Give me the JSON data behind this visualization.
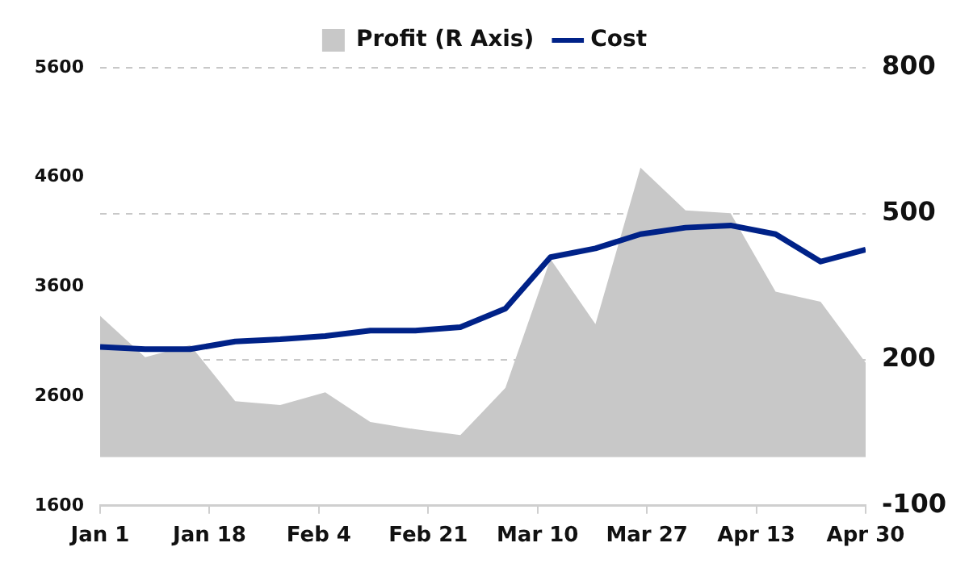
{
  "chart_data": {
    "type": "line",
    "x": [
      "--01-01",
      "--01-08",
      "--01-15",
      "--01-22",
      "--01-29",
      "--02-05",
      "--02-12",
      "--02-19",
      "--02-26",
      "--03-05",
      "--03-12",
      "--03-19",
      "--03-26",
      "--04-02",
      "--04-09",
      "--04-16",
      "--04-23",
      "--04-30"
    ],
    "series": [
      {
        "name": "Profit (R Axis)",
        "type": "area",
        "axis": "y2",
        "color": "#c8c8c8",
        "values": [
          290,
          205,
          230,
          115,
          107,
          133,
          72,
          57,
          45,
          142,
          407,
          273,
          595,
          507,
          501,
          340,
          319,
          194
        ]
      },
      {
        "name": "Cost",
        "color": "#002288",
        "values": [
          3050,
          3030,
          3030,
          3100,
          3120,
          3150,
          3200,
          3200,
          3230,
          3400,
          3870,
          3950,
          4080,
          4140,
          4160,
          4080,
          3830,
          3940
        ]
      }
    ],
    "xlim": [
      "--01-01",
      "--04-30"
    ],
    "xticks": [
      {
        "value": "--01-01",
        "label": "Jan 1"
      },
      {
        "value": "--01-18",
        "label": "Jan 18"
      },
      {
        "value": "--02-04",
        "label": "Feb 4"
      },
      {
        "value": "--02-21",
        "label": "Feb 21"
      },
      {
        "value": "--03-10",
        "label": "Mar 10"
      },
      {
        "value": "--03-27",
        "label": "Mar 27"
      },
      {
        "value": "--04-13",
        "label": "Apr 13"
      },
      {
        "value": "--04-30",
        "label": "Apr 30"
      }
    ],
    "ylim": [
      1600,
      5600
    ],
    "yticks": [
      1600,
      2600,
      3600,
      4600,
      5600
    ],
    "y2lim": [
      -100,
      800
    ],
    "y2ticks": [
      -100,
      200,
      500,
      800
    ],
    "grid": "y2",
    "legend": "top",
    "marker": "none",
    "line_style": "solid"
  }
}
